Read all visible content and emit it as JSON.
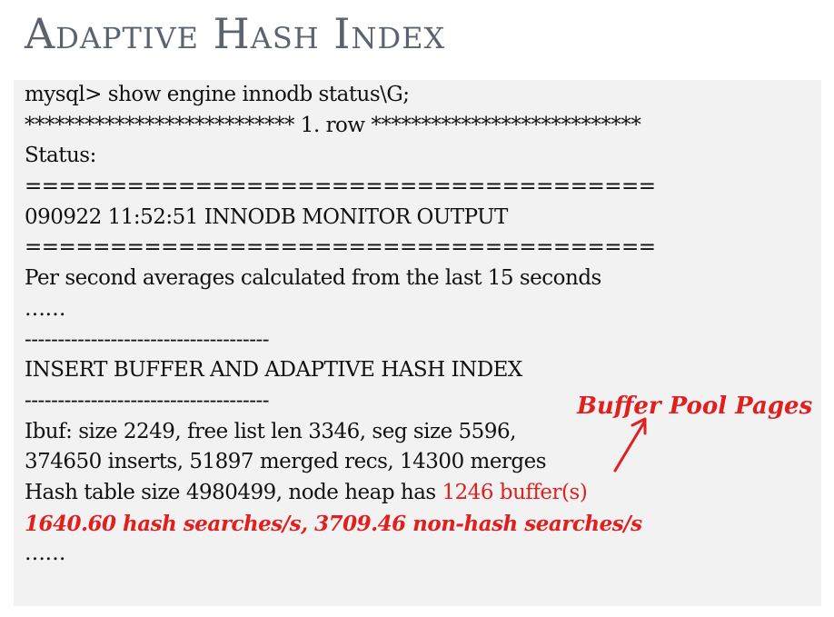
{
  "title": "Adaptive Hash Index",
  "terminal": {
    "lines": [
      "mysql> show engine innodb status\\G;",
      "*************************** 1. row ***************************",
      "Status:",
      "=====================================",
      "090922 11:52:51 INNODB MONITOR OUTPUT",
      "=====================================",
      "Per second averages calculated from the last 15 seconds",
      "……",
      "-------------------------------------",
      "INSERT BUFFER AND ADAPTIVE HASH INDEX",
      "-------------------------------------",
      "Ibuf: size 2249, free list len 3346, seg size 5596,",
      "374650 inserts, 51897 merged recs, 14300 merges",
      "Hash table size 4980499, node heap has ",
      "1640.60 hash searches/s, 3709.46 non-hash searches/s",
      "……"
    ],
    "highlight_buffer": "1246 buffer(s)"
  },
  "annotation": {
    "label": "Buffer Pool Pages",
    "arrow_icon": "arrow-up-right-icon"
  },
  "colors": {
    "title": "#5b6370",
    "panel_background": "#f2f2f2",
    "highlight": "#e01f1f",
    "text": "#111111"
  }
}
